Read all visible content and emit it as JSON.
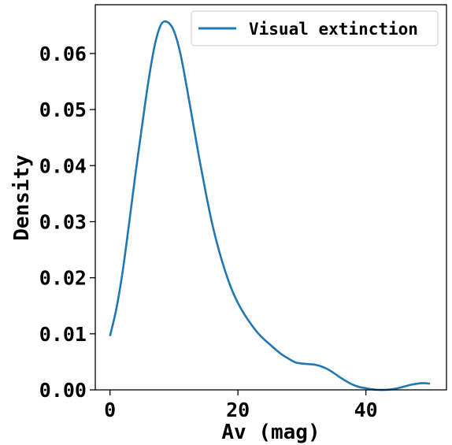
{
  "chart_data": {
    "type": "line",
    "xlabel": "Av (mag)",
    "ylabel": "Density",
    "xlim": [
      -2.3,
      52.6
    ],
    "ylim": [
      0.0,
      0.0687
    ],
    "xticks": [
      0,
      20,
      40
    ],
    "yticks": [
      0.0,
      0.01,
      0.02,
      0.03,
      0.04,
      0.05,
      0.06
    ],
    "xtick_labels": [
      "0",
      "20",
      "40"
    ],
    "ytick_labels": [
      "0.00",
      "0.01",
      "0.02",
      "0.03",
      "0.04",
      "0.05",
      "0.06"
    ],
    "grid": false,
    "legend_position": "top-right",
    "series": [
      {
        "name": "Visual extinction",
        "color": "#1f77b4",
        "x": [
          0,
          1,
          2,
          3,
          4,
          5,
          6,
          7,
          8,
          9,
          10,
          11,
          12,
          13,
          14,
          15,
          16,
          17,
          18,
          19,
          20,
          21,
          22,
          23,
          24,
          25,
          26,
          27,
          28,
          29,
          30,
          31,
          32,
          33,
          34,
          35,
          36,
          37,
          38,
          39,
          40,
          41,
          42,
          43,
          44,
          45,
          46,
          47,
          48,
          49,
          50
        ],
        "y": [
          0.0096,
          0.0145,
          0.0213,
          0.0298,
          0.0387,
          0.047,
          0.055,
          0.0615,
          0.0652,
          0.0656,
          0.064,
          0.06,
          0.054,
          0.0475,
          0.041,
          0.035,
          0.0295,
          0.025,
          0.0212,
          0.018,
          0.0155,
          0.0135,
          0.0118,
          0.0103,
          0.0091,
          0.0081,
          0.0071,
          0.0062,
          0.0055,
          0.0049,
          0.0047,
          0.0046,
          0.0045,
          0.0042,
          0.0037,
          0.003,
          0.0022,
          0.0015,
          0.0009,
          0.0005,
          0.0003,
          0.0001,
          0.0,
          0.0,
          0.0001,
          0.0003,
          0.0006,
          0.0009,
          0.0011,
          0.0012,
          0.0011
        ]
      }
    ]
  }
}
